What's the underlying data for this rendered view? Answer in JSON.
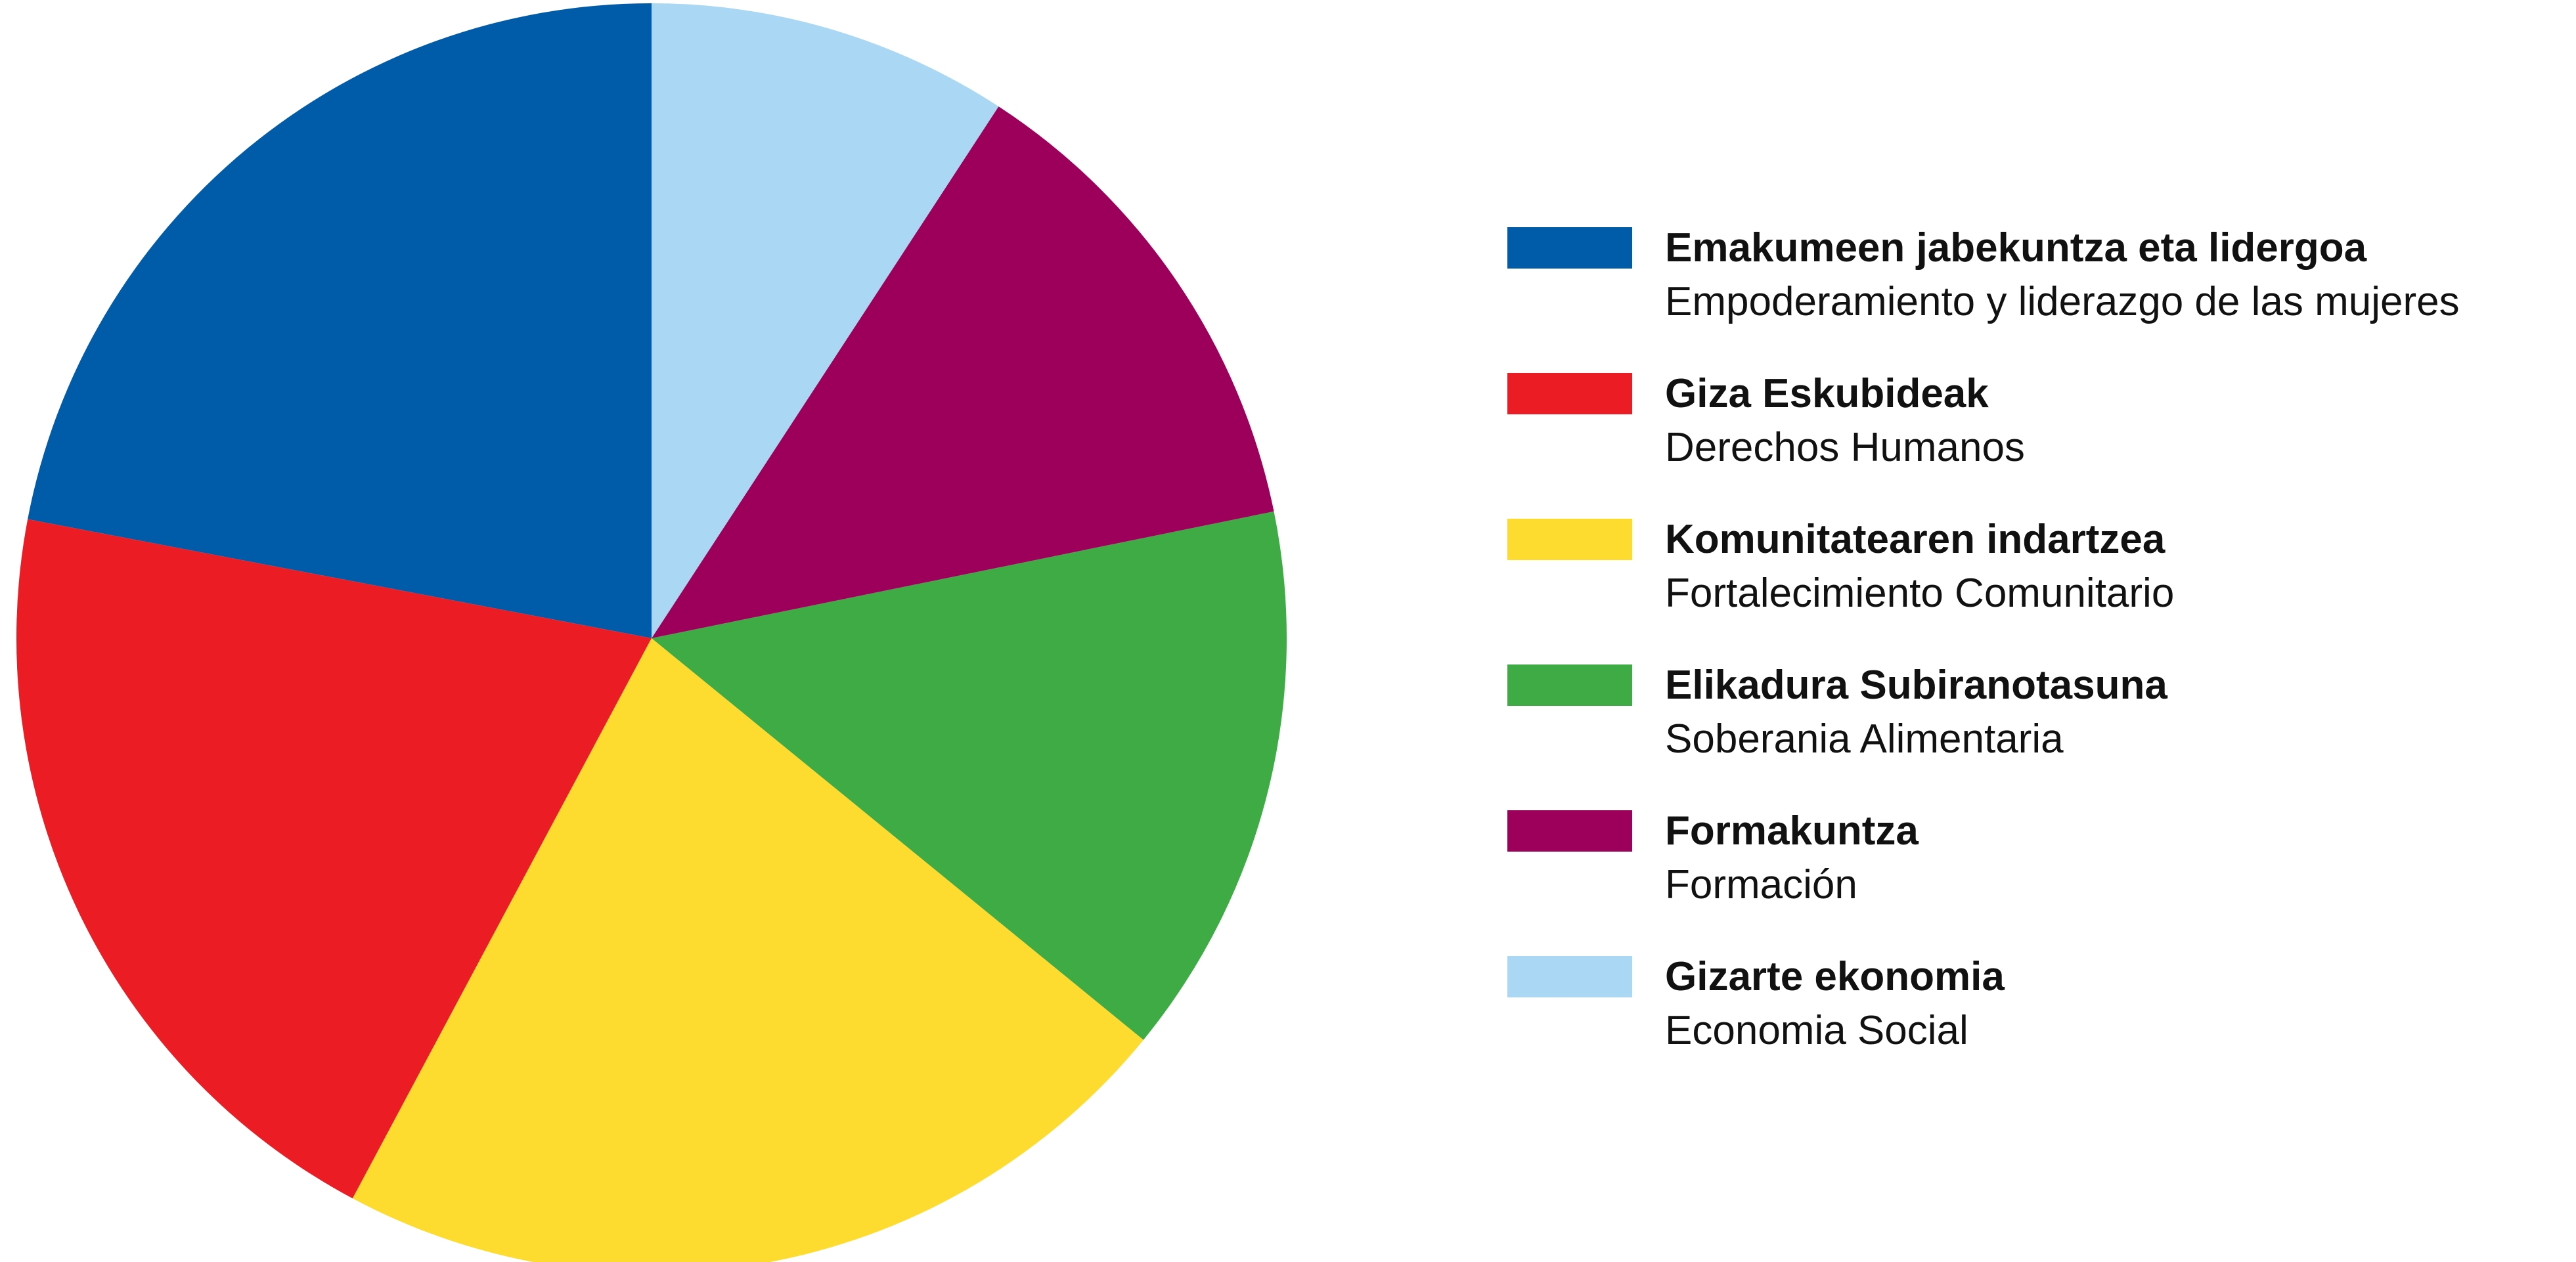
{
  "chart_data": {
    "type": "pie",
    "categories": [
      "Emakumeen jabekuntza eta lidergoa",
      "Giza Eskubideak",
      "Komunitatearen  indartzea",
      "Elikadura Subiranotasuna",
      "Formakuntza",
      "Gizarte ekonomia"
    ],
    "translations": [
      "Empoderamiento y liderazgo de las mujeres",
      "Derechos Humanos",
      "Fortalecimiento Comunitario",
      "Soberania Alimentaria",
      "Formación",
      "Economia Social"
    ],
    "values": [
      22.0,
      20.2,
      21.9,
      14.1,
      12.6,
      9.2
    ],
    "colors": [
      "#005ba9",
      "#ec1c24",
      "#fddc2f",
      "#3eab45",
      "#9c005b",
      "#a9d7f4"
    ],
    "direction": "counterclockwise",
    "start": "top"
  }
}
